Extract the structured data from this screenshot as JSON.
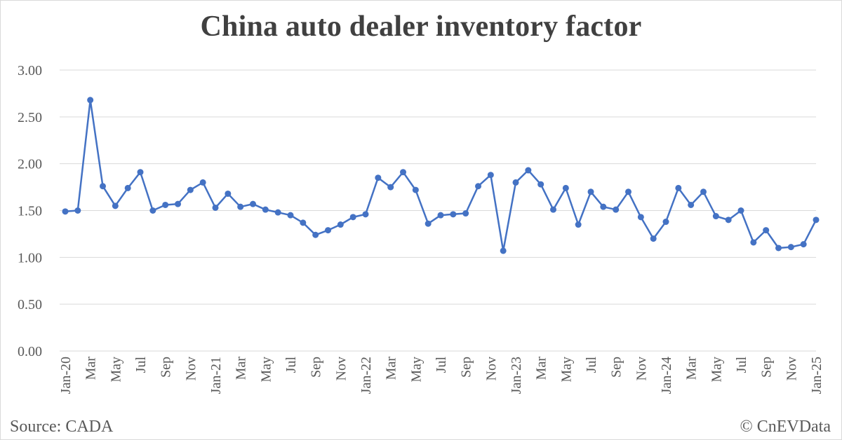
{
  "colors": {
    "line": "#4472c4",
    "grid": "#d9d9d9",
    "text": "#595959",
    "title": "#404040"
  },
  "footer": {
    "source": "Source: CADA",
    "credit": "© CnEVData"
  },
  "chart_data": {
    "type": "line",
    "title": "China auto dealer inventory factor",
    "xlabel": "",
    "ylabel": "",
    "ylim": [
      0,
      3
    ],
    "yticks": [
      "0.00",
      "0.50",
      "1.00",
      "1.50",
      "2.00",
      "2.50",
      "3.00"
    ],
    "grid": true,
    "legend": "none",
    "x_tick_labels": [
      "Jan-20",
      "Mar",
      "May",
      "Jul",
      "Sep",
      "Nov",
      "Jan-21",
      "Mar",
      "May",
      "Jul",
      "Sep",
      "Nov",
      "Jan-22",
      "Mar",
      "May",
      "Jul",
      "Sep",
      "Nov",
      "Jan-23",
      "Mar",
      "May",
      "Jul",
      "Sep",
      "Nov",
      "Jan-24",
      "Mar",
      "May",
      "Jul",
      "Sep",
      "Nov",
      "Jan-25"
    ],
    "categories": [
      "Jan-20",
      "Feb-20",
      "Mar-20",
      "Apr-20",
      "May-20",
      "Jun-20",
      "Jul-20",
      "Aug-20",
      "Sep-20",
      "Oct-20",
      "Nov-20",
      "Dec-20",
      "Jan-21",
      "Feb-21",
      "Mar-21",
      "Apr-21",
      "May-21",
      "Jun-21",
      "Jul-21",
      "Aug-21",
      "Sep-21",
      "Oct-21",
      "Nov-21",
      "Dec-21",
      "Jan-22",
      "Feb-22",
      "Mar-22",
      "Apr-22",
      "May-22",
      "Jun-22",
      "Jul-22",
      "Aug-22",
      "Sep-22",
      "Oct-22",
      "Nov-22",
      "Dec-22",
      "Jan-23",
      "Feb-23",
      "Mar-23",
      "Apr-23",
      "May-23",
      "Jun-23",
      "Jul-23",
      "Aug-23",
      "Sep-23",
      "Oct-23",
      "Nov-23",
      "Dec-23",
      "Jan-24",
      "Feb-24",
      "Mar-24",
      "Apr-24",
      "May-24",
      "Jun-24",
      "Jul-24",
      "Aug-24",
      "Sep-24",
      "Oct-24",
      "Nov-24",
      "Dec-24",
      "Jan-25"
    ],
    "series": [
      {
        "values": [
          1.49,
          1.5,
          2.68,
          1.76,
          1.55,
          1.74,
          1.91,
          1.5,
          1.56,
          1.57,
          1.72,
          1.8,
          1.53,
          1.68,
          1.54,
          1.57,
          1.51,
          1.48,
          1.45,
          1.37,
          1.24,
          1.29,
          1.35,
          1.43,
          1.46,
          1.85,
          1.75,
          1.91,
          1.72,
          1.36,
          1.45,
          1.46,
          1.47,
          1.76,
          1.88,
          1.07,
          1.8,
          1.93,
          1.78,
          1.51,
          1.74,
          1.35,
          1.7,
          1.54,
          1.51,
          1.7,
          1.43,
          1.2,
          1.38,
          1.74,
          1.56,
          1.7,
          1.44,
          1.4,
          1.5,
          1.16,
          1.29,
          1.1,
          1.11,
          1.14,
          1.4
        ]
      }
    ]
  }
}
